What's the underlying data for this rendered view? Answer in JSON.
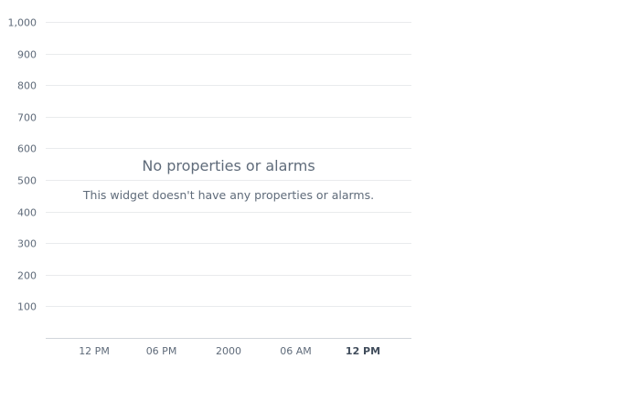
{
  "empty_state": {
    "title": "No properties or alarms",
    "message": "This widget doesn't have any properties or alarms."
  },
  "colors": {
    "text": "#5f6b7a",
    "text_emphasis": "#414d5c",
    "gridline": "#e9ebed",
    "axis": "#d1d5db"
  },
  "chart_data": {
    "type": "line",
    "title": "",
    "xlabel": "",
    "ylabel": "",
    "ylim": [
      0,
      1000
    ],
    "y_ticks": [
      100,
      200,
      300,
      400,
      500,
      600,
      700,
      800,
      900,
      1000
    ],
    "y_tick_labels": [
      "100",
      "200",
      "300",
      "400",
      "500",
      "600",
      "700",
      "800",
      "900",
      "1,000"
    ],
    "x_tick_labels": [
      "12 PM",
      "06 PM",
      "2000",
      "06 AM",
      "12 PM"
    ],
    "x_tick_emphasis": [
      false,
      false,
      false,
      false,
      true
    ],
    "grid": true,
    "series": []
  }
}
